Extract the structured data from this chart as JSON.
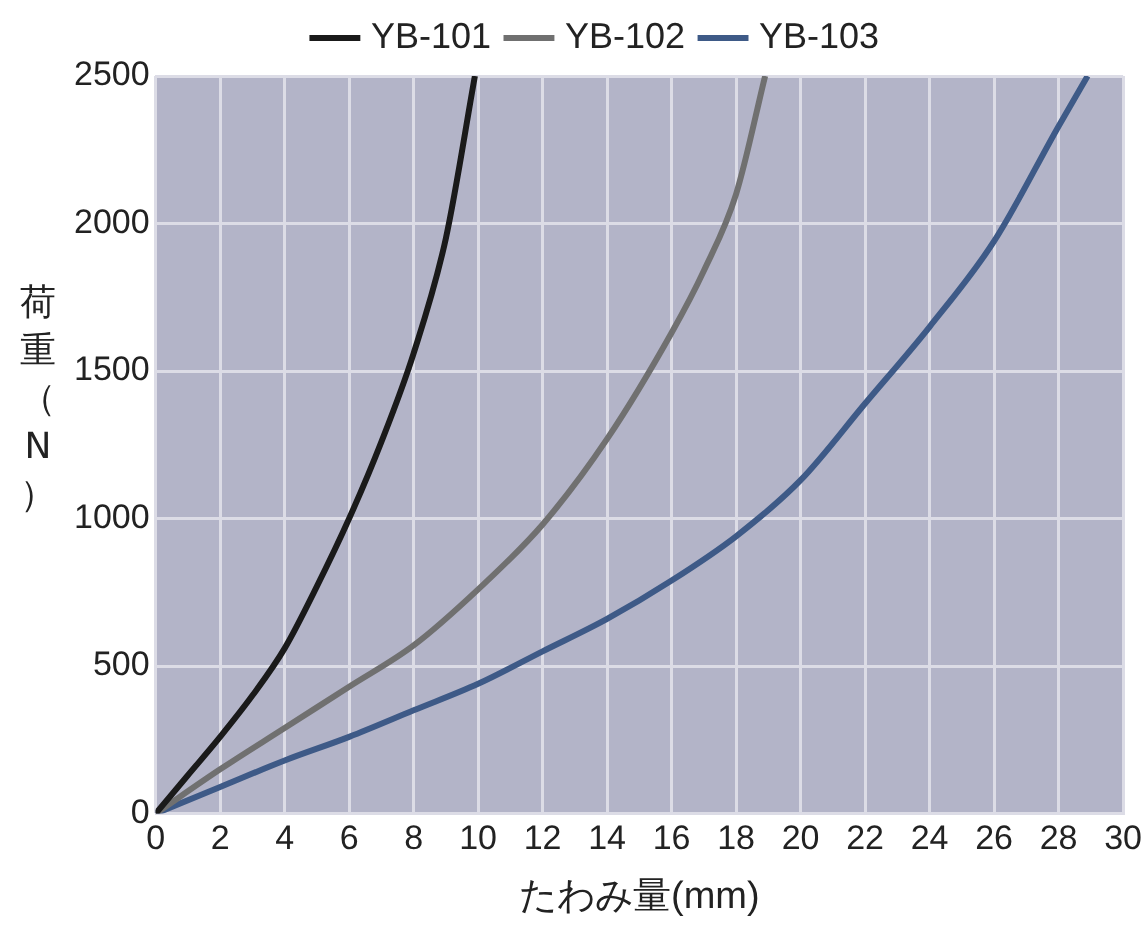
{
  "chart_data": {
    "type": "line",
    "xlabel": "たわみ量(mm)",
    "ylabel": "荷重（N）",
    "xlim": [
      0,
      30
    ],
    "xticks": [
      0,
      2,
      4,
      6,
      8,
      10,
      12,
      14,
      16,
      18,
      20,
      22,
      24,
      26,
      28,
      30
    ],
    "ylim": [
      0,
      2500
    ],
    "yticks": [
      0,
      500,
      1000,
      1500,
      2000,
      2500
    ],
    "grid": true,
    "legend": "top",
    "marker": "none",
    "series": [
      {
        "name": "YB-101",
        "color": "#1a1a1a",
        "x": [
          0,
          1,
          2,
          3,
          4,
          5,
          6,
          7,
          8,
          9,
          9.9
        ],
        "values": [
          0,
          130,
          260,
          400,
          560,
          770,
          1000,
          1260,
          1560,
          1950,
          2500
        ]
      },
      {
        "name": "YB-102",
        "color": "#707070",
        "x": [
          0,
          2,
          4,
          6,
          8,
          10,
          12,
          14,
          16,
          17,
          18,
          18.9
        ],
        "values": [
          0,
          150,
          290,
          430,
          570,
          760,
          980,
          1270,
          1630,
          1840,
          2100,
          2500
        ]
      },
      {
        "name": "YB-103",
        "color": "#3e5a87",
        "x": [
          0,
          2,
          4,
          6,
          8,
          10,
          12,
          14,
          16,
          18,
          20,
          22,
          24,
          26,
          28,
          28.9
        ],
        "values": [
          0,
          90,
          180,
          260,
          350,
          440,
          550,
          660,
          790,
          940,
          1130,
          1390,
          1650,
          1940,
          2330,
          2500
        ]
      }
    ]
  }
}
